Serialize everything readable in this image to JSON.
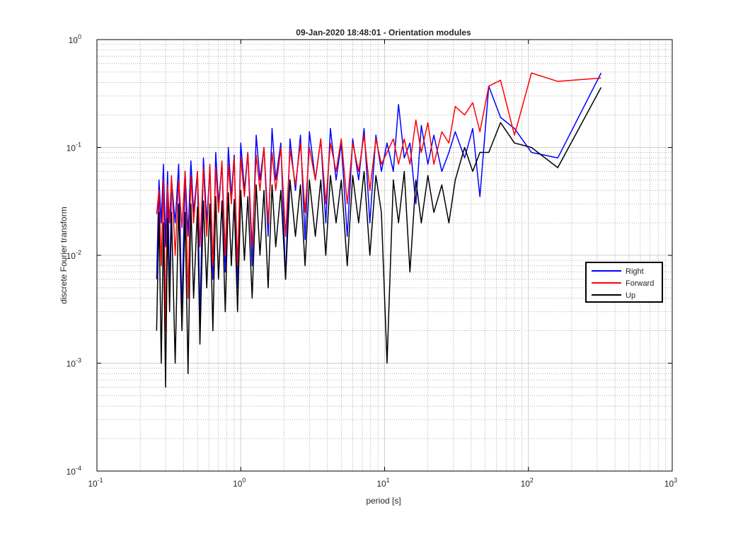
{
  "chart_data": {
    "type": "line",
    "title": "09-Jan-2020 18:48:01 - Orientation modules",
    "xlabel": "period [s]",
    "ylabel": "discrete Fourier transform",
    "xscale": "log",
    "yscale": "log",
    "xlim": [
      0.1,
      1000
    ],
    "ylim": [
      0.0001,
      1
    ],
    "grid": true,
    "minor_grid": true,
    "legend_position": "right",
    "x_tick_base": "10",
    "x_tick_exponents": [
      "-1",
      "0",
      "1",
      "2",
      "3"
    ],
    "y_tick_base": "10",
    "y_tick_exponents": [
      "-4",
      "-3",
      "-2",
      "-1",
      "0"
    ],
    "x_tick_values": [
      0.1,
      1,
      10,
      100,
      1000
    ],
    "y_tick_values": [
      0.0001,
      0.001,
      0.01,
      0.1,
      1
    ],
    "series": [
      {
        "name": "Right",
        "color": "#0000ff",
        "points": [
          [
            0.26,
            0.006
          ],
          [
            0.27,
            0.05
          ],
          [
            0.28,
            0.02
          ],
          [
            0.29,
            0.07
          ],
          [
            0.3,
            0.012
          ],
          [
            0.31,
            0.06
          ],
          [
            0.32,
            0.004
          ],
          [
            0.33,
            0.05
          ],
          [
            0.35,
            0.02
          ],
          [
            0.37,
            0.07
          ],
          [
            0.39,
            0.003
          ],
          [
            0.41,
            0.06
          ],
          [
            0.43,
            0.015
          ],
          [
            0.45,
            0.075
          ],
          [
            0.47,
            0.025
          ],
          [
            0.5,
            0.06
          ],
          [
            0.52,
            0.0025
          ],
          [
            0.55,
            0.08
          ],
          [
            0.58,
            0.02
          ],
          [
            0.61,
            0.065
          ],
          [
            0.64,
            0.006
          ],
          [
            0.67,
            0.09
          ],
          [
            0.7,
            0.03
          ],
          [
            0.74,
            0.07
          ],
          [
            0.78,
            0.007
          ],
          [
            0.82,
            0.1
          ],
          [
            0.86,
            0.035
          ],
          [
            0.9,
            0.085
          ],
          [
            0.95,
            0.005
          ],
          [
            1.0,
            0.11
          ],
          [
            1.06,
            0.04
          ],
          [
            1.12,
            0.09
          ],
          [
            1.2,
            0.008
          ],
          [
            1.28,
            0.13
          ],
          [
            1.36,
            0.05
          ],
          [
            1.45,
            0.1
          ],
          [
            1.55,
            0.015
          ],
          [
            1.65,
            0.15
          ],
          [
            1.75,
            0.05
          ],
          [
            1.9,
            0.11
          ],
          [
            2.05,
            0.006
          ],
          [
            2.2,
            0.12
          ],
          [
            2.4,
            0.04
          ],
          [
            2.6,
            0.13
          ],
          [
            2.8,
            0.014
          ],
          [
            3.0,
            0.14
          ],
          [
            3.3,
            0.05
          ],
          [
            3.6,
            0.12
          ],
          [
            3.9,
            0.02
          ],
          [
            4.2,
            0.15
          ],
          [
            4.6,
            0.05
          ],
          [
            5.0,
            0.11
          ],
          [
            5.5,
            0.015
          ],
          [
            6.0,
            0.12
          ],
          [
            6.6,
            0.05
          ],
          [
            7.2,
            0.15
          ],
          [
            7.9,
            0.02
          ],
          [
            8.7,
            0.13
          ],
          [
            9.5,
            0.06
          ],
          [
            10.4,
            0.11
          ],
          [
            11.5,
            0.06
          ],
          [
            12.5,
            0.25
          ],
          [
            13.7,
            0.08
          ],
          [
            15,
            0.11
          ],
          [
            16.5,
            0.03
          ],
          [
            18,
            0.16
          ],
          [
            20,
            0.07
          ],
          [
            22,
            0.13
          ],
          [
            25,
            0.06
          ],
          [
            28,
            0.09
          ],
          [
            31,
            0.14
          ],
          [
            36,
            0.08
          ],
          [
            41,
            0.15
          ],
          [
            46,
            0.035
          ],
          [
            53,
            0.37
          ],
          [
            64,
            0.19
          ],
          [
            80,
            0.15
          ],
          [
            105,
            0.09
          ],
          [
            160,
            0.08
          ],
          [
            320,
            0.49
          ]
        ]
      },
      {
        "name": "Forward",
        "color": "#ff0000",
        "points": [
          [
            0.26,
            0.024
          ],
          [
            0.27,
            0.04
          ],
          [
            0.28,
            0.008
          ],
          [
            0.29,
            0.05
          ],
          [
            0.3,
            0.002
          ],
          [
            0.31,
            0.045
          ],
          [
            0.32,
            0.02
          ],
          [
            0.33,
            0.055
          ],
          [
            0.35,
            0.01
          ],
          [
            0.37,
            0.05
          ],
          [
            0.39,
            0.018
          ],
          [
            0.41,
            0.06
          ],
          [
            0.43,
            0.004
          ],
          [
            0.45,
            0.055
          ],
          [
            0.47,
            0.02
          ],
          [
            0.5,
            0.06
          ],
          [
            0.52,
            0.012
          ],
          [
            0.55,
            0.065
          ],
          [
            0.58,
            0.015
          ],
          [
            0.61,
            0.07
          ],
          [
            0.64,
            0.008
          ],
          [
            0.67,
            0.065
          ],
          [
            0.7,
            0.025
          ],
          [
            0.74,
            0.075
          ],
          [
            0.78,
            0.01
          ],
          [
            0.82,
            0.07
          ],
          [
            0.86,
            0.03
          ],
          [
            0.9,
            0.08
          ],
          [
            0.95,
            0.008
          ],
          [
            1.0,
            0.08
          ],
          [
            1.06,
            0.035
          ],
          [
            1.12,
            0.09
          ],
          [
            1.2,
            0.012
          ],
          [
            1.28,
            0.085
          ],
          [
            1.36,
            0.04
          ],
          [
            1.45,
            0.1
          ],
          [
            1.55,
            0.02
          ],
          [
            1.65,
            0.09
          ],
          [
            1.75,
            0.04
          ],
          [
            1.9,
            0.1
          ],
          [
            2.05,
            0.015
          ],
          [
            2.2,
            0.095
          ],
          [
            2.4,
            0.045
          ],
          [
            2.6,
            0.11
          ],
          [
            2.8,
            0.025
          ],
          [
            3.0,
            0.1
          ],
          [
            3.3,
            0.05
          ],
          [
            3.6,
            0.12
          ],
          [
            3.9,
            0.03
          ],
          [
            4.2,
            0.11
          ],
          [
            4.6,
            0.06
          ],
          [
            5.0,
            0.12
          ],
          [
            5.5,
            0.03
          ],
          [
            6.0,
            0.11
          ],
          [
            6.6,
            0.06
          ],
          [
            7.2,
            0.13
          ],
          [
            7.9,
            0.04
          ],
          [
            8.7,
            0.12
          ],
          [
            9.5,
            0.07
          ],
          [
            10.4,
            0.09
          ],
          [
            11.5,
            0.12
          ],
          [
            12.5,
            0.07
          ],
          [
            13.7,
            0.12
          ],
          [
            15,
            0.07
          ],
          [
            16.5,
            0.18
          ],
          [
            18,
            0.09
          ],
          [
            20,
            0.17
          ],
          [
            22,
            0.07
          ],
          [
            25,
            0.14
          ],
          [
            28,
            0.11
          ],
          [
            31,
            0.24
          ],
          [
            36,
            0.2
          ],
          [
            41,
            0.26
          ],
          [
            46,
            0.14
          ],
          [
            53,
            0.37
          ],
          [
            64,
            0.42
          ],
          [
            80,
            0.13
          ],
          [
            105,
            0.49
          ],
          [
            160,
            0.41
          ],
          [
            320,
            0.44
          ]
        ]
      },
      {
        "name": "Up",
        "color": "#000000",
        "points": [
          [
            0.26,
            0.002
          ],
          [
            0.27,
            0.025
          ],
          [
            0.28,
            0.001
          ],
          [
            0.29,
            0.02
          ],
          [
            0.3,
            0.0006
          ],
          [
            0.31,
            0.022
          ],
          [
            0.32,
            0.003
          ],
          [
            0.33,
            0.025
          ],
          [
            0.35,
            0.001
          ],
          [
            0.37,
            0.03
          ],
          [
            0.39,
            0.002
          ],
          [
            0.41,
            0.025
          ],
          [
            0.43,
            0.0008
          ],
          [
            0.45,
            0.03
          ],
          [
            0.47,
            0.004
          ],
          [
            0.5,
            0.028
          ],
          [
            0.52,
            0.0015
          ],
          [
            0.55,
            0.032
          ],
          [
            0.58,
            0.005
          ],
          [
            0.61,
            0.03
          ],
          [
            0.64,
            0.002
          ],
          [
            0.67,
            0.035
          ],
          [
            0.7,
            0.006
          ],
          [
            0.74,
            0.032
          ],
          [
            0.78,
            0.003
          ],
          [
            0.82,
            0.038
          ],
          [
            0.86,
            0.008
          ],
          [
            0.9,
            0.033
          ],
          [
            0.95,
            0.003
          ],
          [
            1.0,
            0.04
          ],
          [
            1.06,
            0.009
          ],
          [
            1.12,
            0.035
          ],
          [
            1.2,
            0.004
          ],
          [
            1.28,
            0.045
          ],
          [
            1.36,
            0.01
          ],
          [
            1.45,
            0.04
          ],
          [
            1.55,
            0.005
          ],
          [
            1.65,
            0.045
          ],
          [
            1.75,
            0.012
          ],
          [
            1.9,
            0.04
          ],
          [
            2.05,
            0.006
          ],
          [
            2.2,
            0.05
          ],
          [
            2.4,
            0.015
          ],
          [
            2.6,
            0.045
          ],
          [
            2.8,
            0.008
          ],
          [
            3.0,
            0.05
          ],
          [
            3.3,
            0.015
          ],
          [
            3.6,
            0.05
          ],
          [
            3.9,
            0.01
          ],
          [
            4.2,
            0.055
          ],
          [
            4.6,
            0.02
          ],
          [
            5.0,
            0.05
          ],
          [
            5.5,
            0.008
          ],
          [
            6.0,
            0.055
          ],
          [
            6.6,
            0.02
          ],
          [
            7.2,
            0.06
          ],
          [
            7.9,
            0.01
          ],
          [
            8.7,
            0.055
          ],
          [
            9.5,
            0.025
          ],
          [
            10.4,
            0.001
          ],
          [
            11.5,
            0.05
          ],
          [
            12.5,
            0.02
          ],
          [
            13.7,
            0.06
          ],
          [
            15,
            0.007
          ],
          [
            16.5,
            0.05
          ],
          [
            18,
            0.02
          ],
          [
            20,
            0.055
          ],
          [
            22,
            0.025
          ],
          [
            25,
            0.045
          ],
          [
            28,
            0.02
          ],
          [
            31,
            0.05
          ],
          [
            36,
            0.1
          ],
          [
            41,
            0.06
          ],
          [
            46,
            0.09
          ],
          [
            53,
            0.09
          ],
          [
            64,
            0.17
          ],
          [
            80,
            0.11
          ],
          [
            105,
            0.1
          ],
          [
            160,
            0.065
          ],
          [
            320,
            0.36
          ]
        ]
      }
    ]
  }
}
